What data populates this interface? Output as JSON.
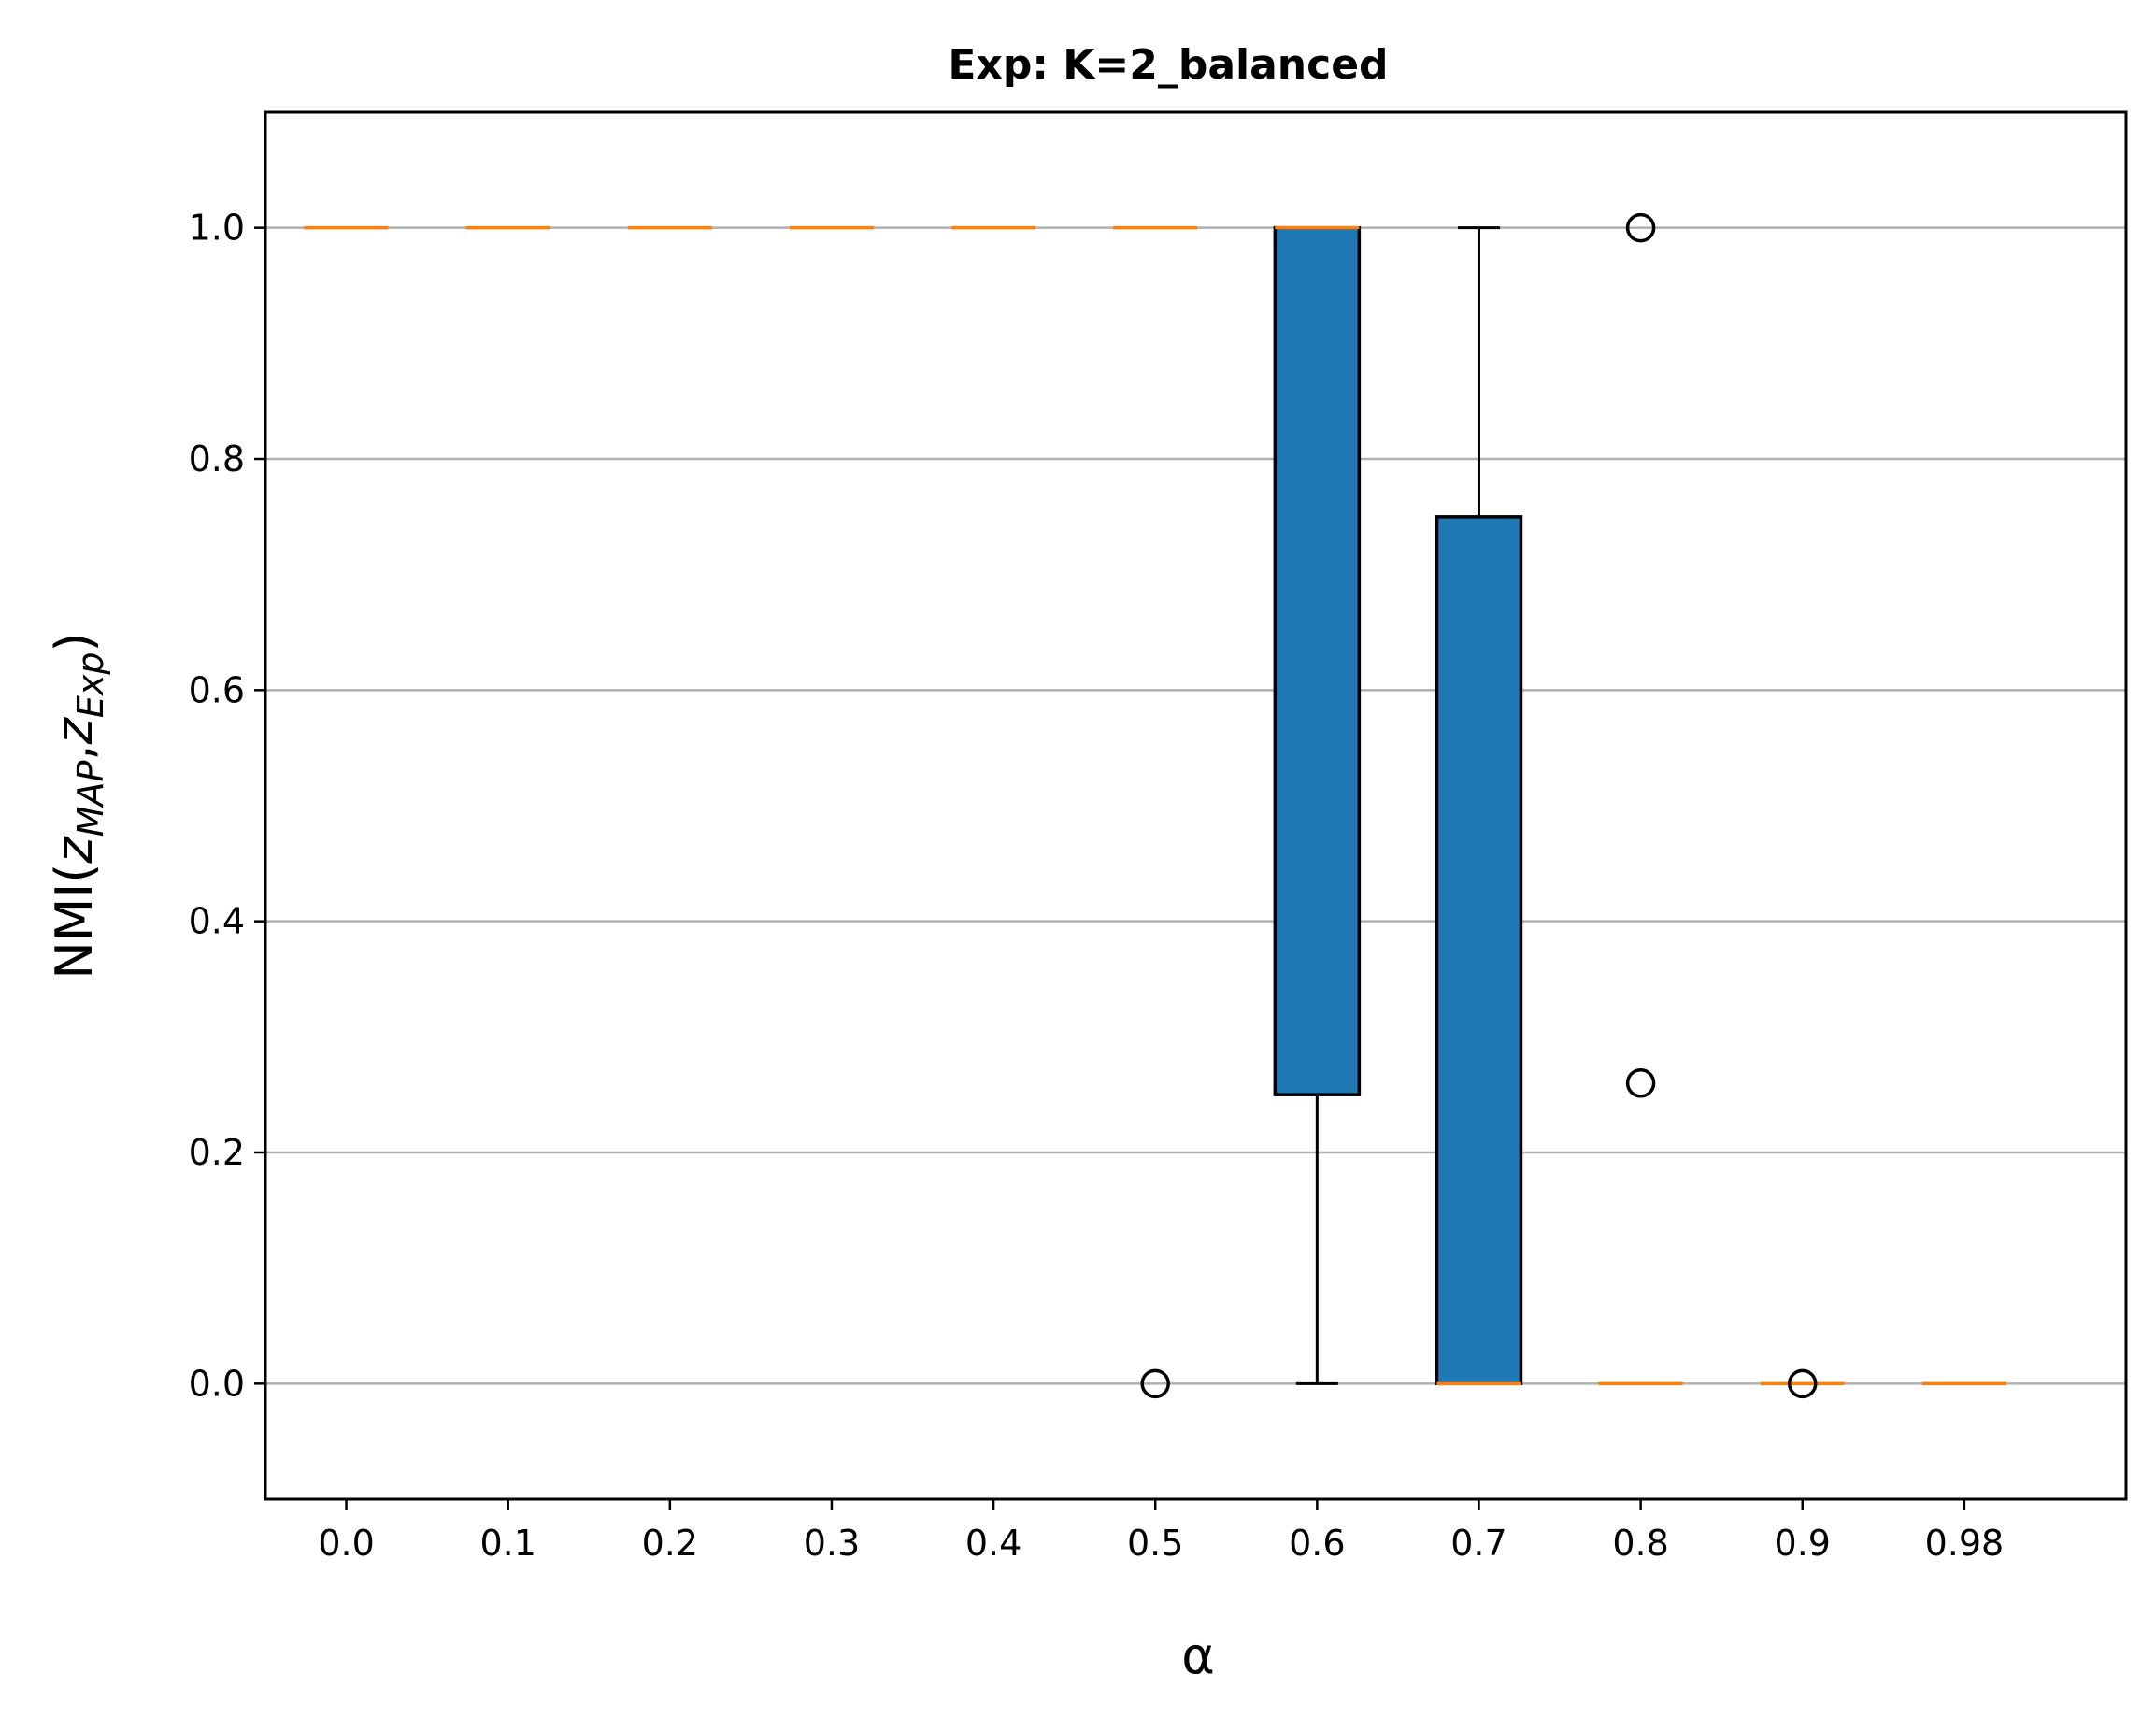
{
  "chart_data": {
    "type": "box",
    "title": "Exp: K=2_balanced",
    "xlabel": "α",
    "ylabel": {
      "prefix": "NMI(",
      "var1": "z",
      "sub1": "MAP",
      "sep": ",",
      "var2": "z",
      "sub2": "Exp",
      "suffix": ")"
    },
    "ylim": [
      -0.1,
      1.1
    ],
    "yticks": [
      0.0,
      0.2,
      0.4,
      0.6,
      0.8,
      1.0
    ],
    "ytick_labels": [
      "0.0",
      "0.2",
      "0.4",
      "0.6",
      "0.8",
      "1.0"
    ],
    "grid": "y",
    "categories": [
      "0.0",
      "0.1",
      "0.2",
      "0.3",
      "0.4",
      "0.5",
      "0.6",
      "0.7",
      "0.8",
      "0.9",
      "0.98"
    ],
    "boxes": [
      {
        "q1": 1.0,
        "median": 1.0,
        "q3": 1.0,
        "whisker_low": 1.0,
        "whisker_high": 1.0,
        "outliers": []
      },
      {
        "q1": 1.0,
        "median": 1.0,
        "q3": 1.0,
        "whisker_low": 1.0,
        "whisker_high": 1.0,
        "outliers": []
      },
      {
        "q1": 1.0,
        "median": 1.0,
        "q3": 1.0,
        "whisker_low": 1.0,
        "whisker_high": 1.0,
        "outliers": []
      },
      {
        "q1": 1.0,
        "median": 1.0,
        "q3": 1.0,
        "whisker_low": 1.0,
        "whisker_high": 1.0,
        "outliers": []
      },
      {
        "q1": 1.0,
        "median": 1.0,
        "q3": 1.0,
        "whisker_low": 1.0,
        "whisker_high": 1.0,
        "outliers": []
      },
      {
        "q1": 1.0,
        "median": 1.0,
        "q3": 1.0,
        "whisker_low": 1.0,
        "whisker_high": 1.0,
        "outliers": [
          0.0
        ]
      },
      {
        "q1": 0.25,
        "median": 1.0,
        "q3": 1.0,
        "whisker_low": 0.0,
        "whisker_high": 1.0,
        "outliers": []
      },
      {
        "q1": 0.0,
        "median": 0.0,
        "q3": 0.75,
        "whisker_low": 0.0,
        "whisker_high": 1.0,
        "outliers": []
      },
      {
        "q1": 0.0,
        "median": 0.0,
        "q3": 0.0,
        "whisker_low": 0.0,
        "whisker_high": 0.0,
        "outliers": [
          1.0,
          0.26
        ]
      },
      {
        "q1": 0.0,
        "median": 0.0,
        "q3": 0.0,
        "whisker_low": 0.0,
        "whisker_high": 0.0,
        "outliers": [
          0.0
        ]
      },
      {
        "q1": 0.0,
        "median": 0.0,
        "q3": 0.0,
        "whisker_low": 0.0,
        "whisker_high": 0.0,
        "outliers": []
      }
    ],
    "colors": {
      "box_fill": "#1f77b4",
      "median": "#ff7f0e",
      "edge": "#000000",
      "grid": "#b0b0b0"
    }
  }
}
